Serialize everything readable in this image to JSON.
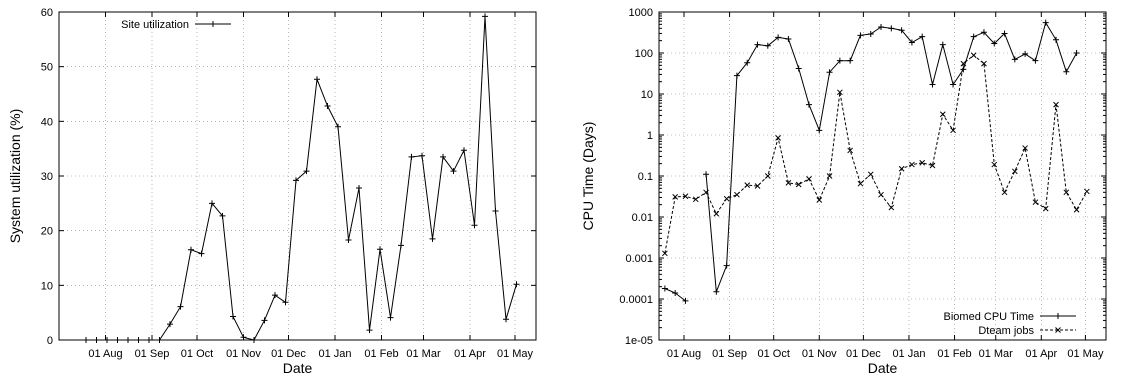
{
  "chart_data": [
    {
      "type": "line",
      "title": "",
      "xlabel": "Date",
      "ylabel": "System utilization (%)",
      "ylim": [
        0,
        60
      ],
      "yticks": [
        0,
        10,
        20,
        30,
        40,
        50,
        60
      ],
      "ytick_labels": [
        "0",
        "10",
        "20",
        "30",
        "40",
        "50",
        "60"
      ],
      "xlim": [
        "2005-07-01",
        "2006-05-15"
      ],
      "xticks": [
        "2005-08-01",
        "2005-09-01",
        "2005-10-01",
        "2005-11-01",
        "2005-12-01",
        "2006-01-01",
        "2006-02-01",
        "2006-03-01",
        "2006-04-01",
        "2006-05-01"
      ],
      "xtick_labels": [
        "01 Aug",
        "01 Sep",
        "01 Oct",
        "01 Nov",
        "01 Dec",
        "01 Jan",
        "01 Feb",
        "01 Mar",
        "01 Apr",
        "01 May"
      ],
      "grid": true,
      "legend_position": "top-left",
      "series": [
        {
          "name": "Site utilization",
          "style": "solid",
          "marker": "+",
          "x": [
            "2005-07-19",
            "2005-07-26",
            "2005-08-02",
            "2005-08-09",
            "2005-08-16",
            "2005-08-23",
            "2005-08-30",
            "2005-09-06",
            "2005-09-13",
            "2005-09-20",
            "2005-09-27",
            "2005-10-04",
            "2005-10-11",
            "2005-10-18",
            "2005-10-25",
            "2005-11-01",
            "2005-11-08",
            "2005-11-15",
            "2005-11-22",
            "2005-11-29",
            "2005-12-06",
            "2005-12-13",
            "2005-12-20",
            "2005-12-27",
            "2006-01-03",
            "2006-01-10",
            "2006-01-17",
            "2006-01-24",
            "2006-01-31",
            "2006-02-07",
            "2006-02-14",
            "2006-02-21",
            "2006-02-28",
            "2006-03-07",
            "2006-03-14",
            "2006-03-21",
            "2006-03-28",
            "2006-04-04",
            "2006-04-11",
            "2006-04-18",
            "2006-04-25",
            "2006-05-02",
            "2006-05-09"
          ],
          "y": [
            0,
            0,
            0,
            0,
            0,
            0,
            0,
            0,
            2.9,
            6.1,
            16.5,
            15.8,
            25.0,
            22.7,
            4.3,
            0.5,
            0,
            3.6,
            8.2,
            6.9,
            29.2,
            30.9,
            47.7,
            42.8,
            39.0,
            18.3,
            27.8,
            1.8,
            16.6,
            4.1,
            17.3,
            33.5,
            33.7,
            18.5,
            33.5,
            30.9,
            34.7,
            21.0,
            59.2,
            23.6,
            3.8,
            10.2,
            null
          ]
        }
      ]
    },
    {
      "type": "line",
      "title": "",
      "xlabel": "Date",
      "ylabel": "CPU Time (Days)",
      "yscale": "log",
      "ylim": [
        1e-05,
        1000
      ],
      "yticks": [
        1e-05,
        0.0001,
        0.001,
        0.01,
        0.1,
        1,
        10,
        100,
        1000
      ],
      "ytick_labels": [
        "1e-05",
        "0.0001",
        "0.001",
        "0.01",
        "0.1",
        "1",
        "10",
        "100",
        "1000"
      ],
      "xlim": [
        "2005-07-15",
        "2006-05-15"
      ],
      "xticks": [
        "2005-08-01",
        "2005-09-01",
        "2005-10-01",
        "2005-11-01",
        "2005-12-01",
        "2006-01-01",
        "2006-02-01",
        "2006-03-01",
        "2006-04-01",
        "2006-05-01"
      ],
      "xtick_labels": [
        "01 Aug",
        "01 Sep",
        "01 Oct",
        "01 Nov",
        "01 Dec",
        "01 Jan",
        "01 Feb",
        "01 Mar",
        "01 Apr",
        "01 May"
      ],
      "grid": true,
      "legend_position": "bottom-right",
      "series": [
        {
          "name": "Biomed CPU Time",
          "style": "solid",
          "marker": "+",
          "x": [
            "2005-07-19",
            "2005-07-26",
            "2005-08-02",
            "2005-08-09",
            "2005-08-16",
            "2005-08-23",
            "2005-08-30",
            "2005-09-06",
            "2005-09-13",
            "2005-09-20",
            "2005-09-27",
            "2005-10-04",
            "2005-10-11",
            "2005-10-18",
            "2005-10-25",
            "2005-11-01",
            "2005-11-08",
            "2005-11-15",
            "2005-11-22",
            "2005-11-29",
            "2005-12-06",
            "2005-12-13",
            "2005-12-20",
            "2005-12-27",
            "2006-01-03",
            "2006-01-10",
            "2006-01-17",
            "2006-01-24",
            "2006-01-31",
            "2006-02-07",
            "2006-02-14",
            "2006-02-21",
            "2006-02-28",
            "2006-03-07",
            "2006-03-14",
            "2006-03-21",
            "2006-03-28",
            "2006-04-04",
            "2006-04-11",
            "2006-04-18",
            "2006-04-25",
            "2006-05-02",
            "2006-05-09"
          ],
          "y": [
            0.00018,
            0.00014,
            9e-05,
            null,
            0.11,
            0.00015,
            0.00065,
            28,
            58,
            160,
            150,
            240,
            220,
            42,
            5.5,
            1.3,
            34,
            65,
            65,
            270,
            290,
            430,
            400,
            360,
            180,
            250,
            17,
            160,
            17,
            40,
            250,
            320,
            170,
            300,
            70,
            95,
            65,
            550,
            210,
            35,
            100,
            null,
            null
          ]
        },
        {
          "name": "Dteam jobs",
          "style": "dashed",
          "marker": "x",
          "x": [
            "2005-07-19",
            "2005-07-26",
            "2005-08-02",
            "2005-08-09",
            "2005-08-16",
            "2005-08-23",
            "2005-08-30",
            "2005-09-06",
            "2005-09-13",
            "2005-09-20",
            "2005-09-27",
            "2005-10-04",
            "2005-10-11",
            "2005-10-18",
            "2005-10-25",
            "2005-11-01",
            "2005-11-08",
            "2005-11-15",
            "2005-11-22",
            "2005-11-29",
            "2005-12-06",
            "2005-12-13",
            "2005-12-20",
            "2005-12-27",
            "2006-01-03",
            "2006-01-10",
            "2006-01-17",
            "2006-01-24",
            "2006-01-31",
            "2006-02-07",
            "2006-02-14",
            "2006-02-21",
            "2006-02-28",
            "2006-03-07",
            "2006-03-14",
            "2006-03-21",
            "2006-03-28",
            "2006-04-04",
            "2006-04-11",
            "2006-04-18",
            "2006-04-25",
            "2006-05-02",
            "2006-05-09"
          ],
          "y": [
            0.0013,
            0.031,
            0.032,
            0.027,
            0.04,
            0.012,
            0.028,
            0.035,
            0.06,
            0.057,
            0.1,
            0.85,
            0.068,
            0.062,
            0.085,
            0.026,
            0.1,
            11,
            0.42,
            0.065,
            0.11,
            0.035,
            0.017,
            0.15,
            0.19,
            0.21,
            0.18,
            3.2,
            1.3,
            55,
            88,
            55,
            0.19,
            0.04,
            0.13,
            0.48,
            0.023,
            0.016,
            5.5,
            0.04,
            0.015,
            0.042,
            null
          ]
        }
      ]
    }
  ]
}
